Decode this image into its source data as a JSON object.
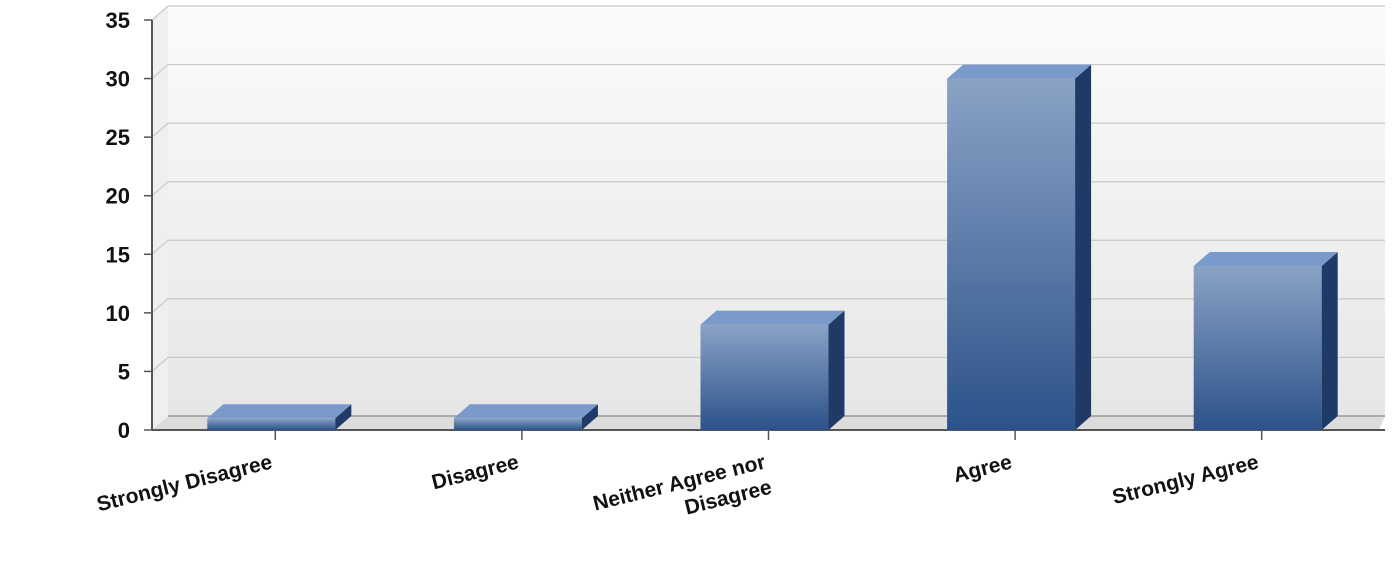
{
  "chart_data": {
    "type": "bar",
    "title": "",
    "xlabel": "",
    "ylabel": "",
    "categories": [
      "Strongly Disagree",
      "Disagree",
      "Neither Agree nor Disagree",
      "Agree",
      "Strongly Agree"
    ],
    "category_label_lines": [
      [
        "Strongly Disagree"
      ],
      [
        "Disagree"
      ],
      [
        "Neither Agree nor",
        "Disagree"
      ],
      [
        "Agree"
      ],
      [
        "Strongly Agree"
      ]
    ],
    "values": [
      1,
      1,
      9,
      30,
      14
    ],
    "ylim": [
      0,
      35
    ],
    "yticks": [
      0,
      5,
      10,
      15,
      20,
      25,
      30,
      35
    ],
    "grid": true,
    "legend": "none",
    "style": "3d",
    "colors": {
      "bar_front_top": "#8aa3c6",
      "bar_front_bottom": "#2c5289",
      "bar_top": "#7a9acb",
      "bar_side": "#1f3a66",
      "grid": "#c8c8c8",
      "plot_bg_top": "#fbfbfb",
      "plot_bg_bottom": "#e6e6e6",
      "axis": "#555555"
    }
  }
}
